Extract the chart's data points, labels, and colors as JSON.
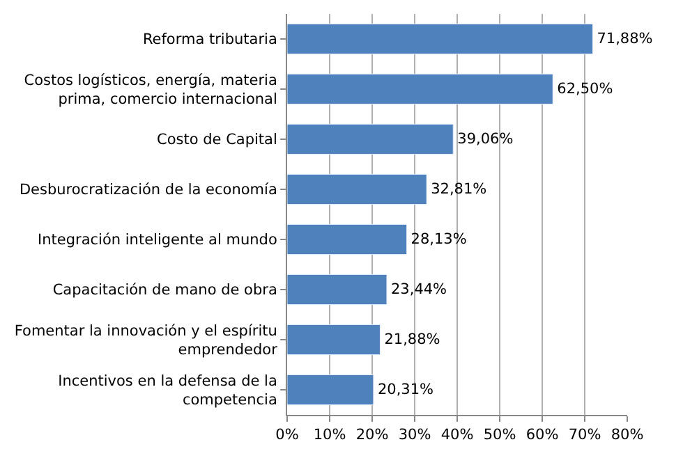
{
  "chart_data": {
    "type": "bar",
    "orientation": "horizontal",
    "categories": [
      "Reforma tributaria",
      "Costos logísticos, energía, materia prima, comercio internacional",
      "Costo de Capital",
      "Desburocratización de la economía",
      "Integración inteligente al mundo",
      "Capacitación de mano de obra",
      "Fomentar la innovación y el espíritu emprendedor",
      "Incentivos en la defensa de la competencia"
    ],
    "values": [
      71.88,
      62.5,
      39.06,
      32.81,
      28.13,
      23.44,
      21.88,
      20.31
    ],
    "value_labels": [
      "71,88%",
      "62,50%",
      "39,06%",
      "32,81%",
      "28,13%",
      "23,44%",
      "21,88%",
      "20,31%"
    ],
    "color": "#4f81bd",
    "xlim": [
      0,
      80
    ],
    "xticks": [
      {
        "value": 0,
        "label": "0%"
      },
      {
        "value": 10,
        "label": "10%"
      },
      {
        "value": 20,
        "label": "20%"
      },
      {
        "value": 30,
        "label": "30%"
      },
      {
        "value": 40,
        "label": "40%"
      },
      {
        "value": 50,
        "label": "50%"
      },
      {
        "value": 60,
        "label": "60%"
      },
      {
        "value": 70,
        "label": "70%"
      },
      {
        "value": 80,
        "label": "80%"
      }
    ],
    "grid": "x"
  }
}
